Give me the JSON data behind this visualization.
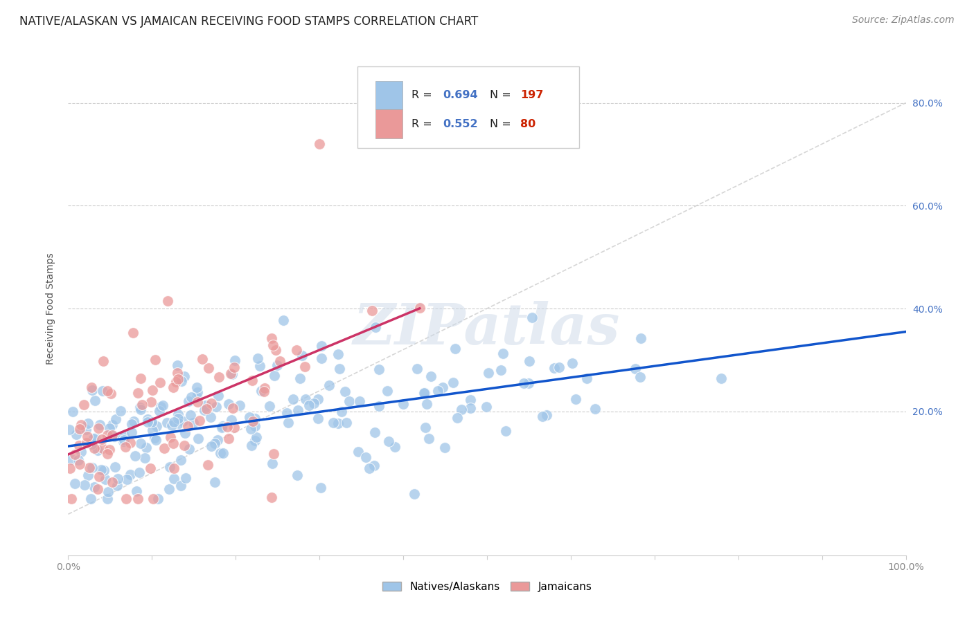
{
  "title": "NATIVE/ALASKAN VS JAMAICAN RECEIVING FOOD STAMPS CORRELATION CHART",
  "source": "Source: ZipAtlas.com",
  "ylabel": "Receiving Food Stamps",
  "legend_label1": "Natives/Alaskans",
  "legend_label2": "Jamaicans",
  "blue_color": "#9fc5e8",
  "pink_color": "#ea9999",
  "blue_line_color": "#1155cc",
  "pink_line_color": "#cc3366",
  "diagonal_color": "#cccccc",
  "watermark_text": "ZIPatlas",
  "blue_N": 197,
  "pink_N": 80,
  "blue_R_text": "0.694",
  "blue_N_text": "197",
  "pink_R_text": "0.552",
  "pink_N_text": "80",
  "xlim": [
    0,
    100
  ],
  "ylim": [
    -8,
    88
  ],
  "background": "#ffffff",
  "grid_color": "#cccccc",
  "title_fontsize": 12,
  "source_fontsize": 10,
  "axis_label_color": "#4472c4",
  "legend_text_color": "#222222",
  "legend_num_color": "#4472c4",
  "legend_N_color": "#cc2200"
}
